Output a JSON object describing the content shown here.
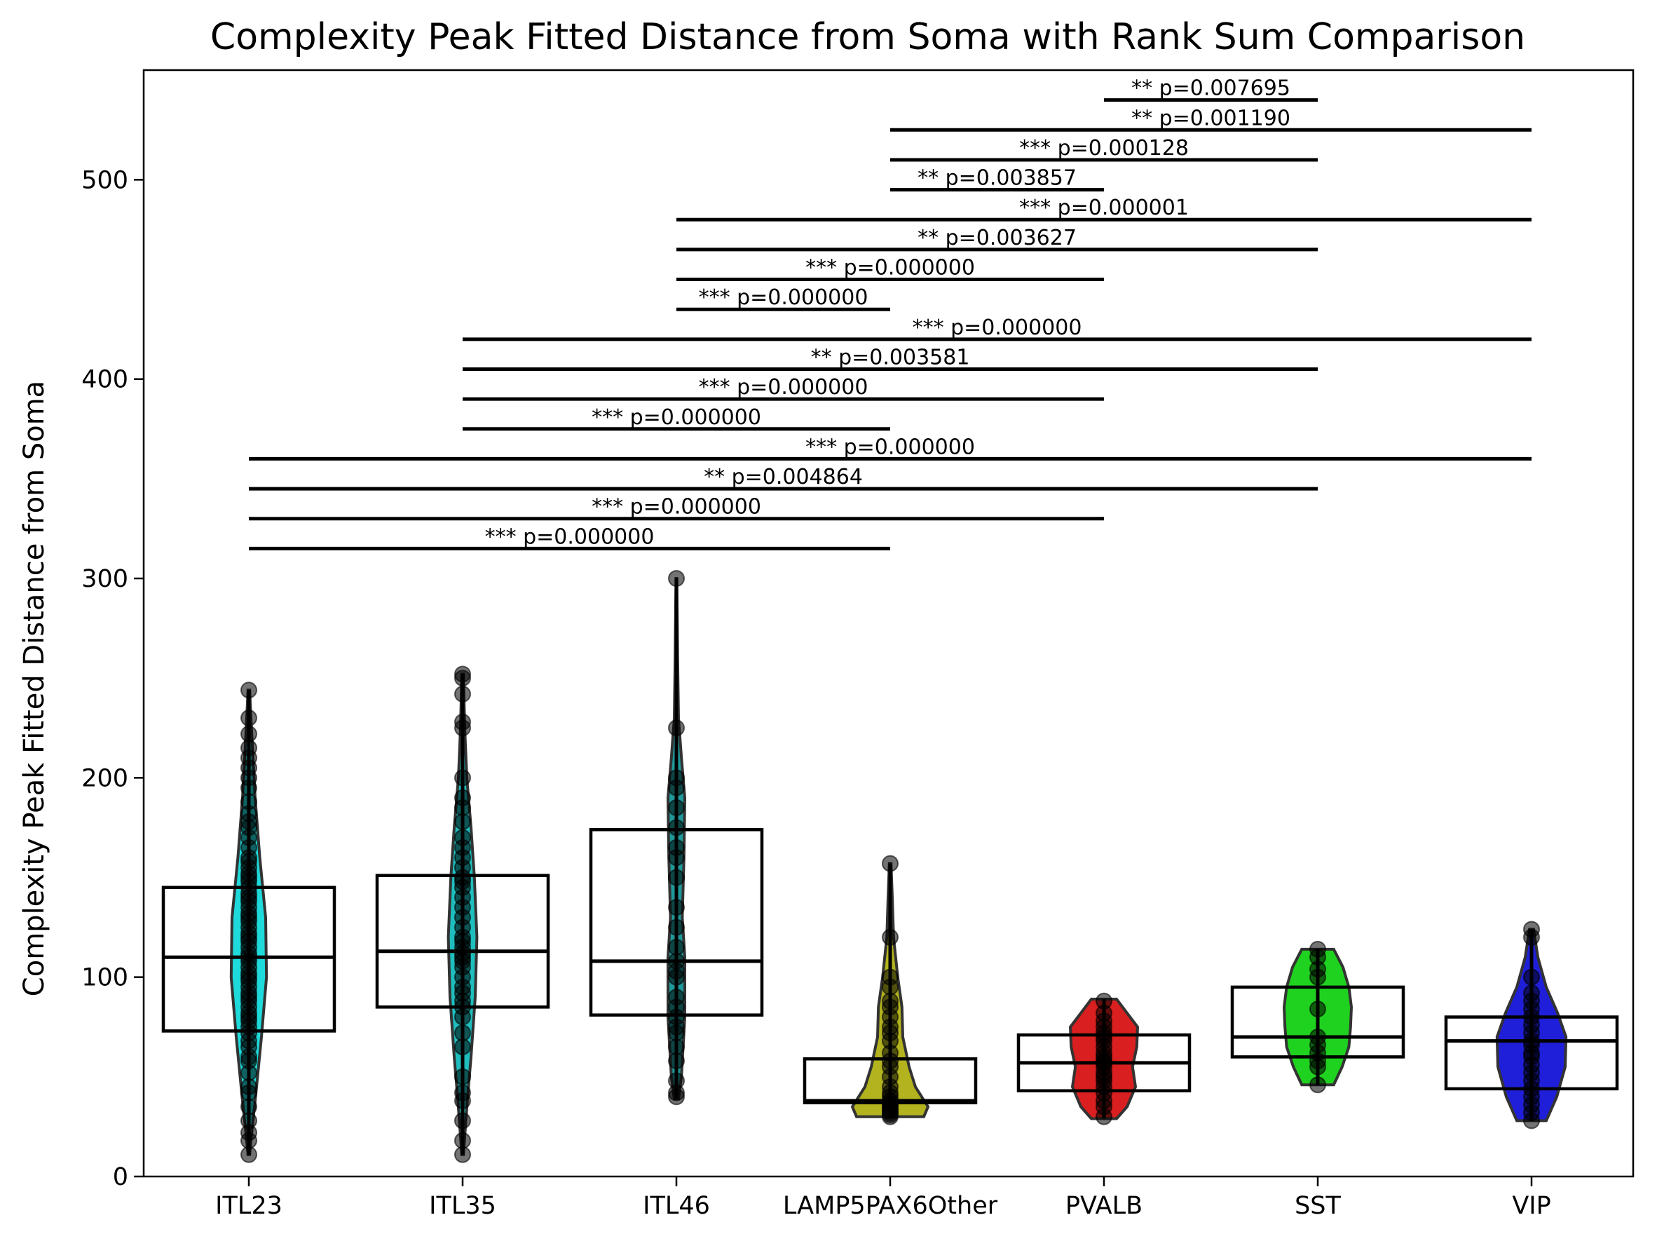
{
  "chart_data": {
    "type": "violin",
    "title": "Complexity Peak Fitted Distance from Soma with Rank Sum Comparison",
    "xlabel": "",
    "ylabel": "Complexity Peak Fitted Distance from Soma",
    "ylim": [
      0,
      555
    ],
    "yticks": [
      0,
      100,
      200,
      300,
      400,
      500
    ],
    "grid": false,
    "legend": "none",
    "categories": [
      "ITL23",
      "ITL35",
      "ITL46",
      "LAMP5PAX6Other",
      "PVALB",
      "SST",
      "VIP"
    ],
    "groups": [
      {
        "name": "ITL23",
        "color": "#00d5d5",
        "box": {
          "q1": 73,
          "median": 110,
          "q3": 145
        },
        "range": [
          11,
          244
        ],
        "shape": [
          [
            11,
            0.02
          ],
          [
            20,
            0.06
          ],
          [
            40,
            0.16
          ],
          [
            70,
            0.3
          ],
          [
            100,
            0.42
          ],
          [
            130,
            0.4
          ],
          [
            160,
            0.26
          ],
          [
            190,
            0.15
          ],
          [
            210,
            0.1
          ],
          [
            230,
            0.05
          ],
          [
            244,
            0.02
          ]
        ],
        "points": [
          11,
          18,
          22,
          28,
          35,
          42,
          45,
          52,
          58,
          60,
          65,
          68,
          72,
          75,
          78,
          80,
          82,
          85,
          88,
          90,
          92,
          95,
          98,
          100,
          102,
          105,
          108,
          110,
          112,
          115,
          118,
          120,
          122,
          125,
          128,
          130,
          132,
          135,
          138,
          140,
          142,
          145,
          148,
          150,
          152,
          155,
          158,
          160,
          165,
          170,
          175,
          178,
          182,
          188,
          195,
          200,
          205,
          210,
          215,
          222,
          230,
          244
        ]
      },
      {
        "name": "ITL35",
        "color": "#00b5b5",
        "box": {
          "q1": 85,
          "median": 113,
          "q3": 151
        },
        "range": [
          11,
          252
        ],
        "shape": [
          [
            11,
            0.02
          ],
          [
            20,
            0.05
          ],
          [
            40,
            0.12
          ],
          [
            60,
            0.2
          ],
          [
            90,
            0.3
          ],
          [
            120,
            0.34
          ],
          [
            150,
            0.28
          ],
          [
            175,
            0.2
          ],
          [
            200,
            0.1
          ],
          [
            225,
            0.05
          ],
          [
            252,
            0.02
          ]
        ],
        "points": [
          11,
          18,
          28,
          38,
          42,
          50,
          65,
          72,
          80,
          85,
          88,
          92,
          95,
          100,
          105,
          108,
          110,
          112,
          115,
          118,
          120,
          125,
          130,
          135,
          140,
          145,
          148,
          150,
          155,
          160,
          165,
          170,
          178,
          185,
          190,
          200,
          225,
          228,
          242,
          250,
          252
        ]
      },
      {
        "name": "ITL46",
        "color": "#008b8b",
        "box": {
          "q1": 81,
          "median": 108,
          "q3": 174
        },
        "range": [
          39,
          300
        ],
        "shape": [
          [
            39,
            0.05
          ],
          [
            50,
            0.12
          ],
          [
            80,
            0.2
          ],
          [
            110,
            0.2
          ],
          [
            130,
            0.14
          ],
          [
            160,
            0.18
          ],
          [
            190,
            0.2
          ],
          [
            210,
            0.12
          ],
          [
            230,
            0.05
          ],
          [
            260,
            0.03
          ],
          [
            300,
            0.01
          ]
        ],
        "points": [
          40,
          42,
          48,
          58,
          65,
          72,
          75,
          80,
          85,
          90,
          100,
          103,
          108,
          115,
          125,
          135,
          150,
          160,
          165,
          175,
          185,
          195,
          200,
          225,
          300
        ]
      },
      {
        "name": "LAMP5PAX6Other",
        "color": "#a8a800",
        "box": {
          "q1": 37,
          "median": 38,
          "q3": 59
        },
        "range": [
          30,
          157
        ],
        "shape": [
          [
            30,
            0.8
          ],
          [
            35,
            0.9
          ],
          [
            45,
            0.6
          ],
          [
            55,
            0.45
          ],
          [
            70,
            0.3
          ],
          [
            85,
            0.28
          ],
          [
            100,
            0.18
          ],
          [
            120,
            0.08
          ],
          [
            140,
            0.05
          ],
          [
            157,
            0.02
          ]
        ],
        "points": [
          30,
          31,
          32,
          33,
          34,
          35,
          36,
          37,
          38,
          40,
          42,
          45,
          50,
          55,
          58,
          62,
          68,
          72,
          75,
          80,
          85,
          88,
          95,
          100,
          120,
          157
        ]
      },
      {
        "name": "PVALB",
        "color": "#d40000",
        "box": {
          "q1": 43,
          "median": 57,
          "q3": 71
        },
        "range": [
          29,
          89
        ],
        "shape": [
          [
            29,
            0.3
          ],
          [
            35,
            0.55
          ],
          [
            45,
            0.75
          ],
          [
            55,
            0.68
          ],
          [
            65,
            0.78
          ],
          [
            75,
            0.8
          ],
          [
            82,
            0.55
          ],
          [
            89,
            0.3
          ]
        ],
        "points": [
          30,
          35,
          38,
          42,
          45,
          48,
          50,
          52,
          55,
          57,
          58,
          60,
          62,
          65,
          68,
          70,
          72,
          75,
          78,
          82,
          88
        ]
      },
      {
        "name": "SST",
        "color": "#00cc00",
        "box": {
          "q1": 60,
          "median": 70,
          "q3": 95
        },
        "range": [
          46,
          114
        ],
        "shape": [
          [
            46,
            0.38
          ],
          [
            55,
            0.58
          ],
          [
            65,
            0.74
          ],
          [
            75,
            0.78
          ],
          [
            85,
            0.8
          ],
          [
            95,
            0.74
          ],
          [
            105,
            0.6
          ],
          [
            114,
            0.38
          ]
        ],
        "points": [
          46,
          55,
          58,
          62,
          66,
          70,
          84,
          100,
          104,
          110,
          114
        ]
      },
      {
        "name": "VIP",
        "color": "#0000d4",
        "box": {
          "q1": 44,
          "median": 68,
          "q3": 80
        },
        "range": [
          28,
          124
        ],
        "shape": [
          [
            28,
            0.35
          ],
          [
            40,
            0.6
          ],
          [
            55,
            0.8
          ],
          [
            70,
            0.82
          ],
          [
            82,
            0.62
          ],
          [
            95,
            0.35
          ],
          [
            110,
            0.15
          ],
          [
            124,
            0.05
          ]
        ],
        "points": [
          28,
          32,
          36,
          40,
          44,
          48,
          52,
          56,
          60,
          62,
          66,
          68,
          72,
          76,
          80,
          84,
          88,
          92,
          100,
          120,
          124
        ]
      }
    ],
    "comparisons": [
      {
        "from": "ITL23",
        "to": "LAMP5PAX6Other",
        "y": 315,
        "label": "*** p=0.000000"
      },
      {
        "from": "ITL23",
        "to": "PVALB",
        "y": 330,
        "label": "*** p=0.000000"
      },
      {
        "from": "ITL23",
        "to": "SST",
        "y": 345,
        "label": "** p=0.004864"
      },
      {
        "from": "ITL23",
        "to": "VIP",
        "y": 360,
        "label": "*** p=0.000000"
      },
      {
        "from": "ITL35",
        "to": "LAMP5PAX6Other",
        "y": 375,
        "label": "*** p=0.000000"
      },
      {
        "from": "ITL35",
        "to": "PVALB",
        "y": 390,
        "label": "*** p=0.000000"
      },
      {
        "from": "ITL35",
        "to": "SST",
        "y": 405,
        "label": "** p=0.003581"
      },
      {
        "from": "ITL35",
        "to": "VIP",
        "y": 420,
        "label": "*** p=0.000000"
      },
      {
        "from": "ITL46",
        "to": "LAMP5PAX6Other",
        "y": 435,
        "label": "*** p=0.000000"
      },
      {
        "from": "ITL46",
        "to": "PVALB",
        "y": 450,
        "label": "*** p=0.000000"
      },
      {
        "from": "ITL46",
        "to": "SST",
        "y": 465,
        "label": "** p=0.003627"
      },
      {
        "from": "ITL46",
        "to": "VIP",
        "y": 480,
        "label": "*** p=0.000001"
      },
      {
        "from": "LAMP5PAX6Other",
        "to": "PVALB",
        "y": 495,
        "label": "** p=0.003857"
      },
      {
        "from": "LAMP5PAX6Other",
        "to": "SST",
        "y": 510,
        "label": "*** p=0.000128"
      },
      {
        "from": "LAMP5PAX6Other",
        "to": "VIP",
        "y": 525,
        "label": "** p=0.001190"
      },
      {
        "from": "PVALB",
        "to": "SST",
        "y": 540,
        "label": "** p=0.007695"
      }
    ]
  }
}
